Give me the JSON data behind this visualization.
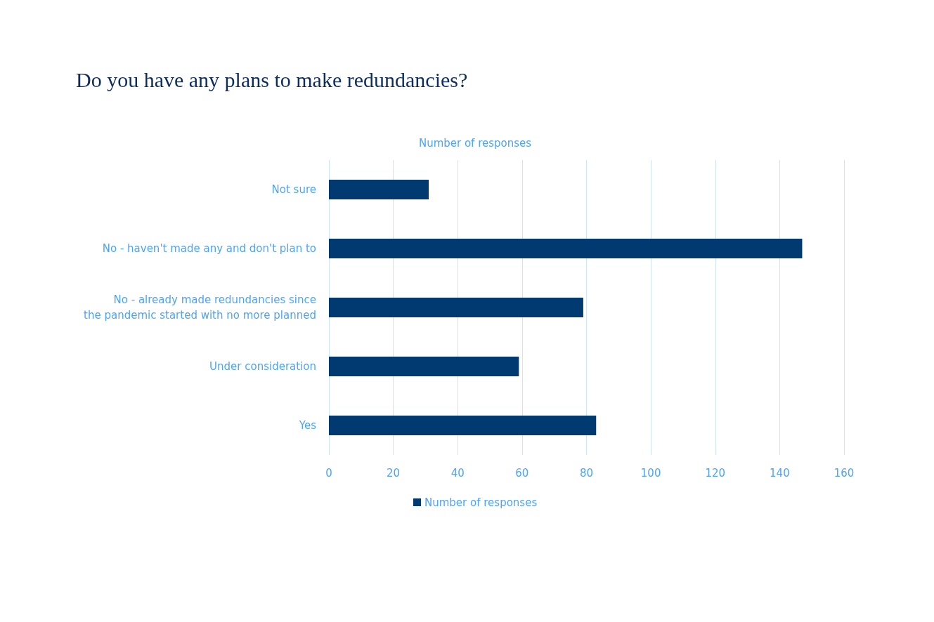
{
  "chart_data": {
    "type": "bar",
    "orientation": "horizontal",
    "title": "Do you have any plans to make redundancies?",
    "subtitle": "Number of responses",
    "categories": [
      "Not sure",
      "No - haven't made any and don't plan to",
      "No - already made redundancies since\nthe pandemic started with no more planned",
      "Under consideration",
      "Yes"
    ],
    "series": [
      {
        "name": "Number of responses",
        "color": "#003a70",
        "values": [
          31,
          147,
          79,
          59,
          83
        ]
      }
    ],
    "xlim": [
      0,
      160
    ],
    "xticks": [
      0,
      20,
      40,
      60,
      80,
      100,
      120,
      140,
      160
    ],
    "grid": "x",
    "legend": "bottom"
  }
}
